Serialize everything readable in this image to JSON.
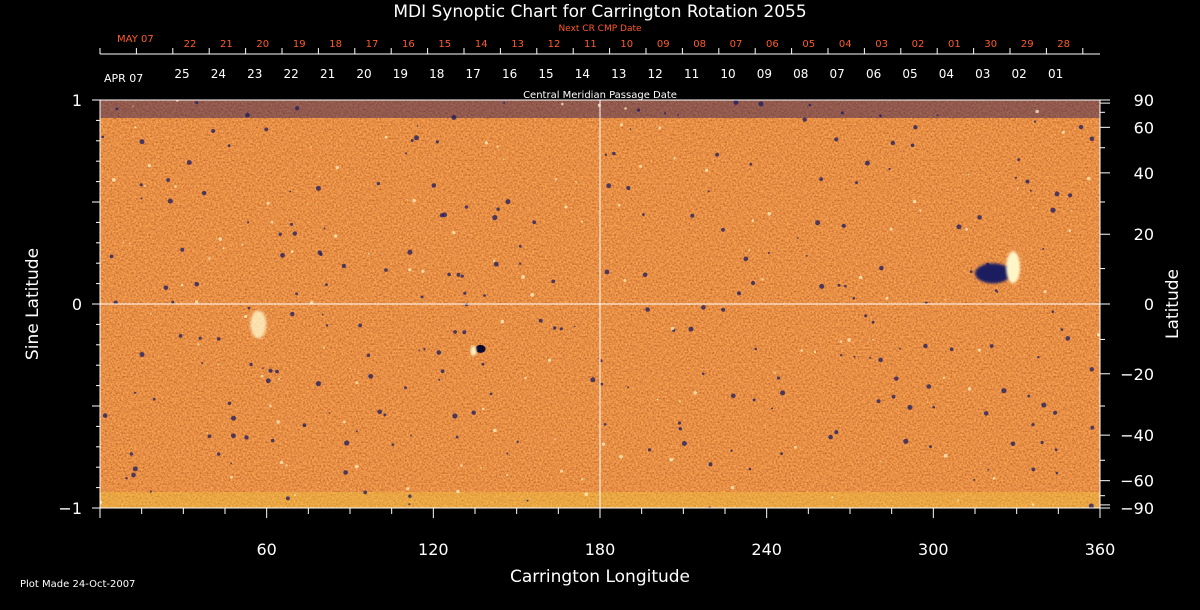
{
  "chart_data": {
    "type": "heatmap",
    "title": "MDI Synoptic Chart for Carrington Rotation 2055",
    "xlabel": "Carrington Longitude",
    "ylabel_left": "Sine Latitude",
    "ylabel_right": "Latitude",
    "xlim": [
      0,
      360
    ],
    "ylim": [
      -1,
      1
    ],
    "x_ticks": [
      60,
      120,
      180,
      240,
      300,
      360
    ],
    "y_ticks_left": [
      -1,
      0,
      1
    ],
    "y_ticks_right": [
      90,
      60,
      40,
      20,
      0,
      -20,
      -40,
      -60,
      -90
    ],
    "top_axis_next": {
      "label": "Next CR CMP Date",
      "month_label": "MAY 07",
      "dates": [
        "22",
        "21",
        "20",
        "19",
        "18",
        "17",
        "16",
        "15",
        "14",
        "13",
        "12",
        "11",
        "10",
        "09",
        "08",
        "07",
        "06",
        "05",
        "04",
        "03",
        "02",
        "01",
        "30",
        "29",
        "28"
      ]
    },
    "top_axis_cmp": {
      "label": "Central Meridian Passage Date",
      "month_label": "APR 07",
      "dates": [
        "25",
        "24",
        "23",
        "22",
        "21",
        "20",
        "19",
        "18",
        "17",
        "16",
        "15",
        "14",
        "13",
        "12",
        "11",
        "10",
        "09",
        "08",
        "07",
        "06",
        "05",
        "04",
        "03",
        "02",
        "01"
      ]
    },
    "grid": "lines at longitude 180 and sine latitude 0",
    "colors": {
      "background": "#000000",
      "map_base": "#e8501a",
      "map_dark": "#b52c0c",
      "map_light": "#ffb040",
      "negative_polarity": "#1a1a60",
      "positive_polarity": "#fff6c8",
      "next_axis": "#ff5a2a"
    },
    "features": [
      {
        "type": "active-region",
        "longitude": 328,
        "sine_latitude": 0.16
      },
      {
        "type": "pore",
        "longitude": 137,
        "sine_latitude": -0.22
      },
      {
        "type": "plage",
        "longitude": 57,
        "sine_latitude": -0.1
      }
    ]
  },
  "footer": "Plot Made 24-Oct-2007"
}
